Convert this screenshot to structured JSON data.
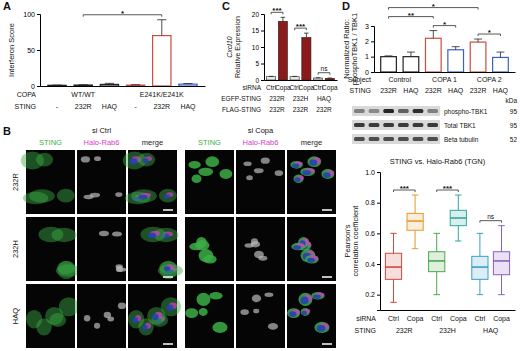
{
  "chart_data": [
    {
      "type": "bar",
      "y_label": [
        "Interferon Score"
      ],
      "x_label": "STING",
      "categories": [
        "-",
        "232R",
        "HAQ",
        "-",
        "232R",
        "HAQ"
      ],
      "values": [
        1.0,
        1.3,
        2.2,
        1.2,
        70,
        2.6
      ],
      "errors": [
        0.3,
        0.5,
        1.5,
        0.6,
        22,
        0.8
      ],
      "colors": [
        "#222222",
        "#222222",
        "#222222",
        "#d04a3c",
        "#d04a3c",
        "#3a5fc8"
      ],
      "ylim": [
        0,
        100
      ],
      "yticks": [
        0,
        50,
        100
      ],
      "x_rows": [
        {
          "title": "COPA",
          "groups": [
            {
              "label": "WT/WT",
              "span": [
                0,
                2
              ]
            },
            {
              "label": "E241K/E241K",
              "span": [
                3,
                5
              ]
            }
          ]
        }
      ],
      "annotations": [
        {
          "text": "*",
          "from": 1,
          "to": 4
        }
      ]
    },
    {
      "type": "bar",
      "y_label": [
        "Cxcl10",
        "Relative Expression"
      ],
      "x_label": "siRNA",
      "categories": [
        "Ctrl",
        "Copa",
        "Ctrl",
        "Copa",
        "Ctrl",
        "Copa"
      ],
      "values": [
        1.0,
        17.8,
        1.0,
        12.9,
        0.6,
        0.5
      ],
      "errors": [
        0.1,
        1.2,
        0.1,
        1.3,
        0.1,
        0.1
      ],
      "colors": [
        "#e6e6e6",
        "#8b1a1a",
        "#e6e6e6",
        "#8b1a1a",
        "#e6e6e6",
        "#8b1a1a"
      ],
      "ylim": [
        0,
        20
      ],
      "yticks": [
        0,
        5,
        10,
        15,
        20
      ],
      "x_rows": [
        {
          "title": "EGFP-STING",
          "groups": [
            {
              "label": "232R",
              "span": [
                0,
                1
              ]
            },
            {
              "label": "232H",
              "span": [
                2,
                3
              ]
            },
            {
              "label": "HAQ",
              "span": [
                4,
                5
              ]
            }
          ]
        },
        {
          "title": "FLAG-STING",
          "groups": [
            {
              "label": "232R",
              "span": [
                0,
                1
              ]
            },
            {
              "label": "232R",
              "span": [
                2,
                3
              ]
            },
            {
              "label": "232R",
              "span": [
                4,
                5
              ]
            }
          ]
        }
      ],
      "annotations": [
        {
          "text": "***",
          "from": 0,
          "to": 1
        },
        {
          "text": "***",
          "from": 2,
          "to": 3
        },
        {
          "text": "ns",
          "from": 4,
          "to": 5
        }
      ]
    },
    {
      "type": "bar",
      "y_label": [
        "Normalized Ratio:",
        "phosphoTBK1 / TBK1"
      ],
      "x_label": "STING",
      "categories": [
        "232R",
        "HAQ",
        "232R",
        "HAQ",
        "232R",
        "HAQ"
      ],
      "values": [
        1.0,
        1.0,
        2.2,
        1.45,
        1.95,
        0.95
      ],
      "errors": [
        0.05,
        0.3,
        0.5,
        0.2,
        0.2,
        0.35
      ],
      "colors": [
        "#222222",
        "#222222",
        "#d04a3c",
        "#3a5fc8",
        "#d04a3c",
        "#3a5fc8"
      ],
      "ylim": [
        0,
        3
      ],
      "yticks": [
        0,
        1,
        2,
        3
      ],
      "x_rows": [
        {
          "title": "Subject",
          "groups": [
            {
              "label": "Control",
              "span": [
                0,
                1
              ]
            },
            {
              "label": "COPA 1",
              "span": [
                2,
                3
              ]
            },
            {
              "label": "COPA 2",
              "span": [
                4,
                5
              ]
            }
          ]
        }
      ],
      "annotations": [
        {
          "text": "*",
          "from": 2,
          "to": 3
        },
        {
          "text": "*",
          "from": 4,
          "to": 5
        },
        {
          "text": "**",
          "from": 0,
          "to": 2
        },
        {
          "text": "*",
          "from": 0,
          "to": 4
        }
      ]
    },
    {
      "type": "box",
      "title": "STING vs. Halo-Rab6 (TGN)",
      "y_label": [
        "Pearson's",
        "correlation coefficient"
      ],
      "x_label": "siRNA",
      "categories": [
        "Ctrl",
        "Copa",
        "Ctrl",
        "Copa",
        "Ctrl",
        "Copa"
      ],
      "stats": [
        {
          "min": 0.15,
          "q1": 0.3,
          "median": 0.38,
          "q3": 0.47,
          "max": 0.6
        },
        {
          "min": 0.5,
          "q1": 0.62,
          "median": 0.68,
          "q3": 0.73,
          "max": 0.85
        },
        {
          "min": 0.2,
          "q1": 0.35,
          "median": 0.42,
          "q3": 0.48,
          "max": 0.6
        },
        {
          "min": 0.55,
          "q1": 0.65,
          "median": 0.7,
          "q3": 0.75,
          "max": 0.85
        },
        {
          "min": 0.2,
          "q1": 0.3,
          "median": 0.38,
          "q3": 0.45,
          "max": 0.6
        },
        {
          "min": 0.2,
          "q1": 0.33,
          "median": 0.42,
          "q3": 0.48,
          "max": 0.65
        }
      ],
      "colors": [
        "#d04a3c",
        "#e69a2e",
        "#4aa84a",
        "#2fa7a0",
        "#3a9ec8",
        "#8a5fc0"
      ],
      "ylim": [
        0.1,
        1
      ],
      "yticks": [
        0.2,
        0.4,
        0.6,
        0.8,
        {
          "value": 1,
          "label": "1.0"
        }
      ],
      "x_rows": [
        {
          "title": "STING",
          "groups": [
            {
              "label": "232R",
              "span": [
                0,
                1
              ]
            },
            {
              "label": "232H",
              "span": [
                2,
                3
              ]
            },
            {
              "label": "HAQ",
              "span": [
                4,
                5
              ]
            }
          ]
        }
      ],
      "annotations": [
        {
          "text": "***",
          "from": 0,
          "to": 1
        },
        {
          "text": "***",
          "from": 2,
          "to": 3
        },
        {
          "text": "ns",
          "from": 4,
          "to": 5
        }
      ]
    }
  ],
  "panel_labels": [
    "A",
    "B",
    "C",
    "D"
  ],
  "microscopy": {
    "conditions": [
      "si Ctrl",
      "si Copa"
    ],
    "channels": [
      {
        "name": "STING",
        "color": "#3cae46"
      },
      {
        "name": "Halo-Rab6",
        "color": "#d63cc8"
      },
      {
        "name": "merge",
        "color": "#222222"
      }
    ],
    "rows": [
      "232R",
      "232H",
      "HAQ"
    ]
  },
  "blot": {
    "kda_label": "kDa",
    "bands": [
      {
        "name": "phospho-TBK1",
        "kda": 95
      },
      {
        "name": "Total TBK1",
        "kda": 95
      },
      {
        "name": "Beta tubulin",
        "kda": 52
      }
    ]
  }
}
